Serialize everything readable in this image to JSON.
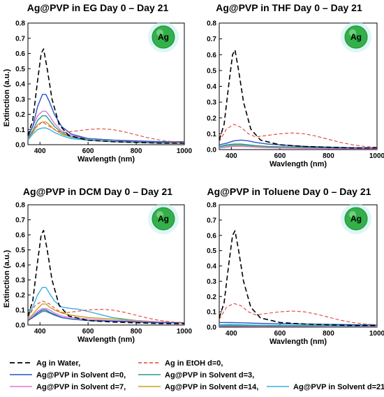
{
  "colors": {
    "water": "#000000",
    "etoh": "#e0443a",
    "d0": "#2456c6",
    "d3": "#2a9a8a",
    "d7": "#d77ad6",
    "d14": "#c8a21a",
    "d21": "#3aaee0",
    "sphere": "#33b04a",
    "sphere_glow": "#bfeeee"
  },
  "legend": [
    {
      "key": "water",
      "label": "Ag in Water,",
      "dash": "dash"
    },
    {
      "key": "etoh",
      "label": "Ag in EtOH d=0,",
      "dash": "dash"
    },
    {
      "key": "d0",
      "label": "Ag@PVP in Solvent d=0,",
      "dash": "solid"
    },
    {
      "key": "d3",
      "label": "Ag@PVP in Solvent d=3,",
      "dash": "solid"
    },
    {
      "key": "d7",
      "label": "Ag@PVP in Solvent d=7,",
      "dash": "solid"
    },
    {
      "key": "d14",
      "label": "Ag@PVP in Solvent d=14,",
      "dash": "solid"
    },
    {
      "key": "d21",
      "label": "Ag@PVP in Solvent d=21",
      "dash": "solid"
    }
  ],
  "chart_data": [
    {
      "type": "line",
      "title": "Ag@PVP in EG Day 0 – Day 21",
      "xlabel": "Wavlength (nm)",
      "ylabel": "Extinction (a.u.)",
      "xlim": [
        350,
        1000
      ],
      "ylim": [
        0,
        0.8
      ],
      "xticks": [
        400,
        600,
        800,
        1000
      ],
      "yticks": [
        0.0,
        0.1,
        0.2,
        0.3,
        0.4,
        0.5,
        0.6,
        0.7,
        0.8
      ],
      "badge": "Ag",
      "series": [
        {
          "key": "water",
          "x": [
            350,
            370,
            390,
            405,
            415,
            430,
            450,
            480,
            520,
            600,
            700,
            800,
            900,
            1000
          ],
          "y": [
            0.06,
            0.16,
            0.42,
            0.6,
            0.63,
            0.5,
            0.3,
            0.13,
            0.06,
            0.03,
            0.02,
            0.015,
            0.01,
            0.01
          ]
        },
        {
          "key": "etoh",
          "x": [
            350,
            380,
            410,
            440,
            470,
            500,
            550,
            600,
            650,
            700,
            750,
            800,
            850,
            900,
            950,
            1000
          ],
          "y": [
            0.05,
            0.11,
            0.15,
            0.12,
            0.09,
            0.08,
            0.09,
            0.1,
            0.105,
            0.1,
            0.085,
            0.065,
            0.045,
            0.03,
            0.02,
            0.015
          ]
        },
        {
          "key": "d0",
          "x": [
            350,
            370,
            390,
            410,
            425,
            440,
            460,
            490,
            530,
            600,
            700,
            800,
            900,
            1000
          ],
          "y": [
            0.05,
            0.12,
            0.25,
            0.33,
            0.33,
            0.28,
            0.2,
            0.12,
            0.07,
            0.04,
            0.03,
            0.025,
            0.02,
            0.02
          ]
        },
        {
          "key": "d3",
          "x": [
            350,
            370,
            390,
            410,
            425,
            440,
            460,
            490,
            530,
            600,
            700,
            800,
            900,
            1000
          ],
          "y": [
            0.04,
            0.09,
            0.16,
            0.19,
            0.19,
            0.16,
            0.12,
            0.08,
            0.05,
            0.03,
            0.02,
            0.015,
            0.012,
            0.01
          ]
        },
        {
          "key": "d7",
          "x": [
            350,
            370,
            390,
            410,
            425,
            440,
            460,
            490,
            530,
            600,
            700,
            800,
            900,
            1000
          ],
          "y": [
            0.05,
            0.12,
            0.19,
            0.22,
            0.22,
            0.19,
            0.14,
            0.09,
            0.06,
            0.04,
            0.03,
            0.02,
            0.015,
            0.01
          ]
        },
        {
          "key": "d14",
          "x": [
            350,
            370,
            390,
            410,
            425,
            440,
            460,
            490,
            530,
            600,
            700,
            800,
            900,
            1000
          ],
          "y": [
            0.04,
            0.08,
            0.13,
            0.15,
            0.15,
            0.13,
            0.1,
            0.07,
            0.05,
            0.04,
            0.03,
            0.02,
            0.015,
            0.01
          ]
        },
        {
          "key": "d21",
          "x": [
            350,
            370,
            390,
            410,
            425,
            440,
            460,
            490,
            530,
            600,
            700,
            800,
            900,
            1000
          ],
          "y": [
            0.03,
            0.07,
            0.1,
            0.11,
            0.11,
            0.1,
            0.08,
            0.06,
            0.04,
            0.03,
            0.02,
            0.015,
            0.01,
            0.01
          ]
        }
      ]
    },
    {
      "type": "line",
      "title": "Ag@PVP in THF Day 0 – Day 21",
      "xlabel": "Wavlength (nm)",
      "ylabel": "",
      "xlim": [
        350,
        1000
      ],
      "ylim": [
        0,
        0.8
      ],
      "xticks": [
        400,
        600,
        800,
        1000
      ],
      "yticks": [
        0.0,
        0.1,
        0.2,
        0.3,
        0.4,
        0.5,
        0.6,
        0.7,
        0.8
      ],
      "badge": "Ag",
      "series": [
        {
          "key": "water",
          "x": [
            350,
            370,
            390,
            405,
            415,
            430,
            450,
            480,
            520,
            600,
            700,
            800,
            900,
            1000
          ],
          "y": [
            0.06,
            0.16,
            0.42,
            0.6,
            0.63,
            0.5,
            0.3,
            0.13,
            0.06,
            0.03,
            0.02,
            0.015,
            0.01,
            0.01
          ]
        },
        {
          "key": "etoh",
          "x": [
            350,
            380,
            410,
            440,
            470,
            500,
            550,
            600,
            650,
            700,
            750,
            800,
            850,
            900,
            950,
            1000
          ],
          "y": [
            0.05,
            0.13,
            0.16,
            0.14,
            0.1,
            0.08,
            0.09,
            0.1,
            0.105,
            0.1,
            0.085,
            0.065,
            0.045,
            0.03,
            0.02,
            0.015
          ]
        },
        {
          "key": "d0",
          "x": [
            350,
            380,
            410,
            440,
            470,
            500,
            550,
            600,
            700,
            800,
            900,
            1000
          ],
          "y": [
            0.03,
            0.04,
            0.055,
            0.06,
            0.055,
            0.045,
            0.035,
            0.03,
            0.02,
            0.015,
            0.012,
            0.01
          ]
        },
        {
          "key": "d3",
          "x": [
            350,
            380,
            410,
            440,
            470,
            500,
            550,
            600,
            700,
            800,
            900,
            1000
          ],
          "y": [
            0.02,
            0.03,
            0.035,
            0.035,
            0.03,
            0.025,
            0.02,
            0.018,
            0.015,
            0.012,
            0.01,
            0.01
          ]
        },
        {
          "key": "d7",
          "x": [
            350,
            380,
            410,
            440,
            470,
            500,
            550,
            600,
            700,
            800,
            900,
            1000
          ],
          "y": [
            0.01,
            0.015,
            0.02,
            0.02,
            0.018,
            0.015,
            0.012,
            0.01,
            0.008,
            0.006,
            0.005,
            0.005
          ]
        },
        {
          "key": "d14",
          "x": [
            350,
            380,
            410,
            440,
            470,
            500,
            550,
            600,
            700,
            800,
            900,
            1000
          ],
          "y": [
            0.01,
            0.018,
            0.025,
            0.025,
            0.02,
            0.018,
            0.015,
            0.012,
            0.01,
            0.008,
            0.006,
            0.005
          ]
        },
        {
          "key": "d21",
          "x": [
            350,
            380,
            410,
            440,
            470,
            500,
            550,
            600,
            700,
            800,
            900,
            1000
          ],
          "y": [
            0.015,
            0.025,
            0.03,
            0.03,
            0.025,
            0.02,
            0.018,
            0.015,
            0.012,
            0.01,
            0.008,
            0.007
          ]
        }
      ]
    },
    {
      "type": "line",
      "title": "Ag@PVP in DCM Day 0 – Day 21",
      "xlabel": "Wavlength (nm)",
      "ylabel": "Extinction (a.u.)",
      "xlim": [
        350,
        1000
      ],
      "ylim": [
        0,
        0.8
      ],
      "xticks": [
        400,
        600,
        800,
        1000
      ],
      "yticks": [
        0.0,
        0.1,
        0.2,
        0.3,
        0.4,
        0.5,
        0.6,
        0.7,
        0.8
      ],
      "badge": "Ag",
      "series": [
        {
          "key": "water",
          "x": [
            350,
            370,
            390,
            405,
            415,
            430,
            450,
            480,
            520,
            600,
            700,
            800,
            900,
            1000
          ],
          "y": [
            0.06,
            0.16,
            0.42,
            0.6,
            0.63,
            0.5,
            0.3,
            0.13,
            0.06,
            0.03,
            0.02,
            0.015,
            0.01,
            0.01
          ]
        },
        {
          "key": "etoh",
          "x": [
            350,
            380,
            410,
            440,
            470,
            500,
            550,
            600,
            650,
            700,
            750,
            800,
            850,
            900,
            950,
            1000
          ],
          "y": [
            0.05,
            0.13,
            0.16,
            0.14,
            0.1,
            0.08,
            0.09,
            0.1,
            0.105,
            0.1,
            0.085,
            0.065,
            0.045,
            0.03,
            0.02,
            0.015
          ]
        },
        {
          "key": "d0",
          "x": [
            350,
            370,
            390,
            410,
            425,
            440,
            460,
            490,
            530,
            600,
            700,
            800,
            900,
            1000
          ],
          "y": [
            0.03,
            0.05,
            0.08,
            0.1,
            0.1,
            0.085,
            0.07,
            0.05,
            0.04,
            0.03,
            0.025,
            0.02,
            0.015,
            0.015
          ]
        },
        {
          "key": "d3",
          "x": [
            350,
            370,
            390,
            410,
            425,
            440,
            460,
            490,
            530,
            600,
            700,
            800,
            900,
            1000
          ],
          "y": [
            0.03,
            0.05,
            0.07,
            0.09,
            0.09,
            0.08,
            0.065,
            0.05,
            0.04,
            0.03,
            0.025,
            0.02,
            0.015,
            0.015
          ]
        },
        {
          "key": "d7",
          "x": [
            350,
            370,
            390,
            410,
            425,
            440,
            460,
            490,
            530,
            600,
            700,
            800,
            900,
            1000
          ],
          "y": [
            0.03,
            0.06,
            0.09,
            0.11,
            0.11,
            0.1,
            0.08,
            0.06,
            0.05,
            0.04,
            0.03,
            0.025,
            0.02,
            0.015
          ]
        },
        {
          "key": "d14",
          "x": [
            350,
            370,
            390,
            410,
            425,
            440,
            460,
            490,
            530,
            600,
            700,
            800,
            900,
            1000
          ],
          "y": [
            0.04,
            0.07,
            0.11,
            0.14,
            0.14,
            0.12,
            0.1,
            0.08,
            0.065,
            0.05,
            0.04,
            0.03,
            0.02,
            0.015
          ]
        },
        {
          "key": "d21",
          "x": [
            350,
            370,
            390,
            410,
            425,
            440,
            460,
            490,
            530,
            560,
            600,
            650,
            700,
            800,
            900,
            1000
          ],
          "y": [
            0.05,
            0.12,
            0.2,
            0.25,
            0.25,
            0.21,
            0.16,
            0.12,
            0.11,
            0.105,
            0.09,
            0.07,
            0.05,
            0.03,
            0.02,
            0.015
          ]
        }
      ]
    },
    {
      "type": "line",
      "title": "Ag@PVP in Toluene Day 0 – Day 21",
      "xlabel": "Wavlength (nm)",
      "ylabel": "",
      "xlim": [
        350,
        1000
      ],
      "ylim": [
        0,
        0.8
      ],
      "xticks": [
        400,
        600,
        800,
        1000
      ],
      "yticks": [
        0.0,
        0.1,
        0.2,
        0.3,
        0.4,
        0.5,
        0.6,
        0.7,
        0.8
      ],
      "badge": "Ag",
      "series": [
        {
          "key": "water",
          "x": [
            350,
            370,
            390,
            405,
            415,
            430,
            450,
            480,
            520,
            600,
            700,
            800,
            900,
            1000
          ],
          "y": [
            0.06,
            0.16,
            0.42,
            0.6,
            0.63,
            0.5,
            0.3,
            0.13,
            0.06,
            0.03,
            0.02,
            0.015,
            0.01,
            0.01
          ]
        },
        {
          "key": "etoh",
          "x": [
            350,
            380,
            410,
            440,
            470,
            500,
            550,
            600,
            650,
            700,
            750,
            800,
            850,
            900,
            950,
            1000
          ],
          "y": [
            0.05,
            0.13,
            0.155,
            0.14,
            0.1,
            0.08,
            0.09,
            0.1,
            0.105,
            0.1,
            0.085,
            0.065,
            0.045,
            0.03,
            0.02,
            0.015
          ]
        },
        {
          "key": "d0",
          "x": [
            350,
            400,
            450,
            500,
            600,
            700,
            800,
            900,
            1000
          ],
          "y": [
            0.03,
            0.03,
            0.028,
            0.025,
            0.022,
            0.02,
            0.018,
            0.016,
            0.015
          ]
        },
        {
          "key": "d3",
          "x": [
            350,
            400,
            450,
            500,
            600,
            700,
            800,
            900,
            1000
          ],
          "y": [
            0.01,
            0.012,
            0.01,
            0.01,
            0.008,
            0.008,
            0.007,
            0.006,
            0.006
          ]
        },
        {
          "key": "d7",
          "x": [
            350,
            400,
            450,
            500,
            600,
            700,
            800,
            900,
            1000
          ],
          "y": [
            0.005,
            0.006,
            0.005,
            0.005,
            0.004,
            0.004,
            0.003,
            0.003,
            0.003
          ]
        },
        {
          "key": "d14",
          "x": [
            350,
            400,
            450,
            500,
            600,
            700,
            800,
            900,
            1000
          ],
          "y": [
            0.008,
            0.01,
            0.008,
            0.008,
            0.006,
            0.006,
            0.005,
            0.005,
            0.004
          ]
        },
        {
          "key": "d21",
          "x": [
            350,
            400,
            450,
            500,
            600,
            700,
            800,
            900,
            1000
          ],
          "y": [
            0.015,
            0.018,
            0.015,
            0.013,
            0.012,
            0.011,
            0.01,
            0.009,
            0.008
          ]
        }
      ]
    }
  ]
}
